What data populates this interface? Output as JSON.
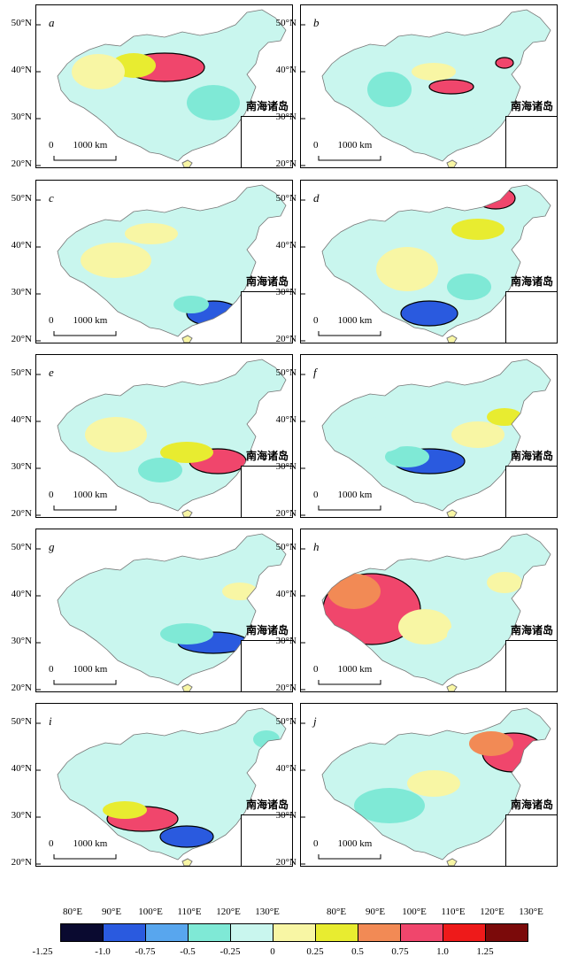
{
  "panels": [
    {
      "label": "a",
      "inset_title": "南海诸岛",
      "scale_zero": "0",
      "scale_len": "1000 km"
    },
    {
      "label": "b",
      "inset_title": "南海诸岛",
      "scale_zero": "0",
      "scale_len": "1000 km"
    },
    {
      "label": "c",
      "inset_title": "南海诸岛",
      "scale_zero": "0",
      "scale_len": "1000 km"
    },
    {
      "label": "d",
      "inset_title": "南海诸岛",
      "scale_zero": "0",
      "scale_len": "1000 km"
    },
    {
      "label": "e",
      "inset_title": "南海诸岛",
      "scale_zero": "0",
      "scale_len": "1000 km"
    },
    {
      "label": "f",
      "inset_title": "南海诸岛",
      "scale_zero": "0",
      "scale_len": "1000 km"
    },
    {
      "label": "g",
      "inset_title": "南海诸岛",
      "scale_zero": "0",
      "scale_len": "1000 km"
    },
    {
      "label": "h",
      "inset_title": "南海诸岛",
      "scale_zero": "0",
      "scale_len": "1000 km"
    },
    {
      "label": "i",
      "inset_title": "南海诸岛",
      "scale_zero": "0",
      "scale_len": "1000 km"
    },
    {
      "label": "j",
      "inset_title": "南海诸岛",
      "scale_zero": "0",
      "scale_len": "1000 km"
    }
  ],
  "lat_ticks": [
    "50°N",
    "40°N",
    "30°N",
    "20°N"
  ],
  "lon_ticks": [
    "80°E",
    "90°E",
    "100°E",
    "110°E",
    "120°E",
    "130°E"
  ],
  "colorbar": {
    "colors": [
      "#0a0a30",
      "#2a5adf",
      "#58a6ee",
      "#7fe9d6",
      "#c9f6ee",
      "#f8f6a4",
      "#e8ec30",
      "#f28a55",
      "#f0466c",
      "#ee1a1a",
      "#7b0a0a"
    ],
    "ticks": [
      "-1.25",
      "-1.0",
      "-0.75",
      "-0.5",
      "-0.25",
      "0",
      "0.25",
      "0.5",
      "0.75",
      "1.0",
      "1.25"
    ]
  }
}
